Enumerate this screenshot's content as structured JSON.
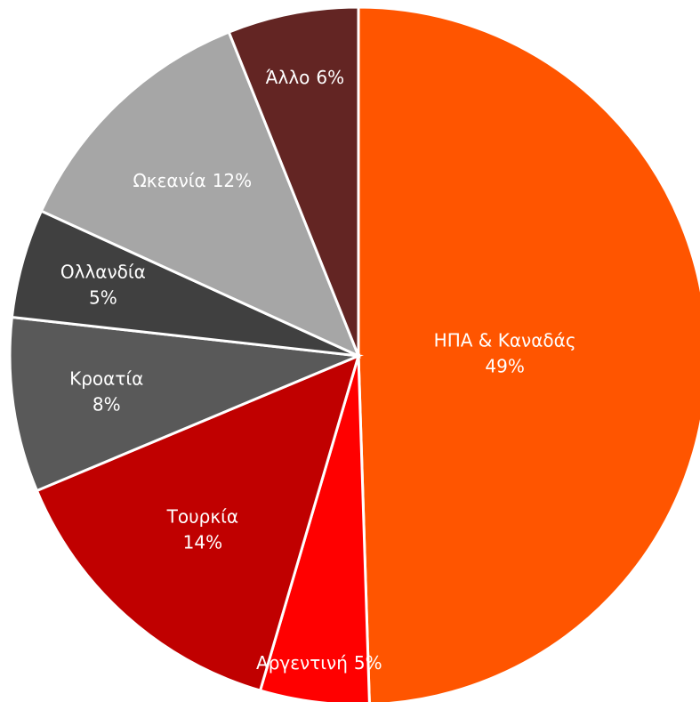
{
  "chart_data": {
    "type": "pie",
    "categories": [
      "ΗΠΑ & Καναδάς",
      "Αργεντινή",
      "Τουρκία",
      "Κροατία",
      "Ολλανδία",
      "Ωκεανία",
      "Άλλο"
    ],
    "values": [
      49,
      5,
      14,
      8,
      5,
      12,
      6
    ],
    "value_labels": [
      "49%",
      "5%",
      "14%",
      "8%",
      "5%",
      "12%",
      "6%"
    ],
    "colors": [
      "#FF5500",
      "#FF0000",
      "#C00000",
      "#595959",
      "#404040",
      "#A6A6A6",
      "#632523"
    ]
  }
}
